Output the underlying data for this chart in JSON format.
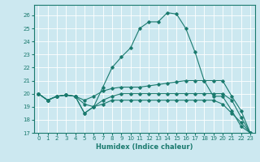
{
  "title": "",
  "xlabel": "Humidex (Indice chaleur)",
  "background_color": "#cce8f0",
  "grid_color": "#ffffff",
  "line_color": "#1a7a6e",
  "xlim": [
    -0.5,
    23.5
  ],
  "ylim": [
    17,
    26.8
  ],
  "yticks": [
    17,
    18,
    19,
    20,
    21,
    22,
    23,
    24,
    25,
    26
  ],
  "xticks": [
    0,
    1,
    2,
    3,
    4,
    5,
    6,
    7,
    8,
    9,
    10,
    11,
    12,
    13,
    14,
    15,
    16,
    17,
    18,
    19,
    20,
    21,
    22,
    23
  ],
  "lines": [
    {
      "x": [
        0,
        1,
        2,
        3,
        4,
        5,
        6,
        7,
        8,
        9,
        10,
        11,
        12,
        13,
        14,
        15,
        16,
        17,
        18,
        19,
        20,
        21,
        22,
        23
      ],
      "y": [
        20.0,
        19.5,
        19.8,
        19.9,
        19.8,
        18.5,
        19.0,
        20.5,
        22.0,
        22.8,
        23.5,
        25.0,
        25.5,
        25.5,
        26.2,
        26.1,
        25.0,
        23.2,
        21.0,
        19.8,
        19.8,
        18.7,
        17.5,
        17.0
      ]
    },
    {
      "x": [
        0,
        1,
        2,
        3,
        4,
        5,
        6,
        7,
        8,
        9,
        10,
        11,
        12,
        13,
        14,
        15,
        16,
        17,
        18,
        19,
        20,
        21,
        22,
        23
      ],
      "y": [
        20.0,
        19.5,
        19.8,
        19.9,
        19.8,
        19.5,
        19.8,
        20.2,
        20.4,
        20.5,
        20.5,
        20.5,
        20.6,
        20.7,
        20.8,
        20.9,
        21.0,
        21.0,
        21.0,
        21.0,
        21.0,
        19.8,
        18.7,
        17.0
      ]
    },
    {
      "x": [
        0,
        1,
        2,
        3,
        4,
        5,
        6,
        7,
        8,
        9,
        10,
        11,
        12,
        13,
        14,
        15,
        16,
        17,
        18,
        19,
        20,
        21,
        22,
        23
      ],
      "y": [
        20.0,
        19.5,
        19.8,
        19.9,
        19.8,
        19.2,
        19.0,
        19.5,
        19.8,
        20.0,
        20.0,
        20.0,
        20.0,
        20.0,
        20.0,
        20.0,
        20.0,
        20.0,
        20.0,
        20.0,
        20.0,
        19.5,
        18.2,
        17.0
      ]
    },
    {
      "x": [
        0,
        1,
        2,
        3,
        4,
        5,
        6,
        7,
        8,
        9,
        10,
        11,
        12,
        13,
        14,
        15,
        16,
        17,
        18,
        19,
        20,
        21,
        22,
        23
      ],
      "y": [
        20.0,
        19.5,
        19.8,
        19.9,
        19.8,
        18.5,
        19.0,
        19.2,
        19.5,
        19.5,
        19.5,
        19.5,
        19.5,
        19.5,
        19.5,
        19.5,
        19.5,
        19.5,
        19.5,
        19.5,
        19.2,
        18.5,
        17.8,
        17.0
      ]
    }
  ]
}
